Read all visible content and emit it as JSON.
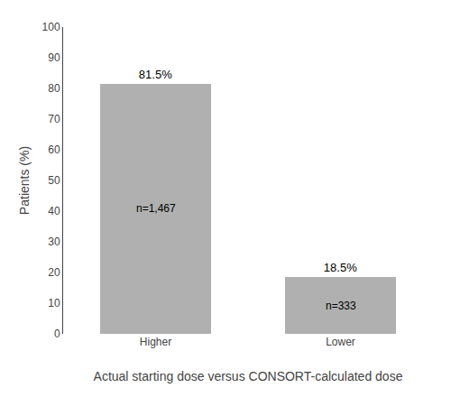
{
  "chart_data": {
    "type": "bar",
    "categories": [
      "Higher",
      "Lower"
    ],
    "values": [
      81.5,
      18.5
    ],
    "value_labels": [
      "81.5%",
      "18.5%"
    ],
    "data_labels": true,
    "annotations": [
      "n=1,467",
      "n=333"
    ],
    "color": "#b0b0b0",
    "xlabel": "Actual starting dose versus CONSORT-calculated dose",
    "ylabel": "Patients (%)",
    "ylim": [
      0,
      100
    ],
    "yticks": [
      0,
      10,
      20,
      30,
      40,
      50,
      60,
      70,
      80,
      90,
      100
    ],
    "grid": false
  }
}
